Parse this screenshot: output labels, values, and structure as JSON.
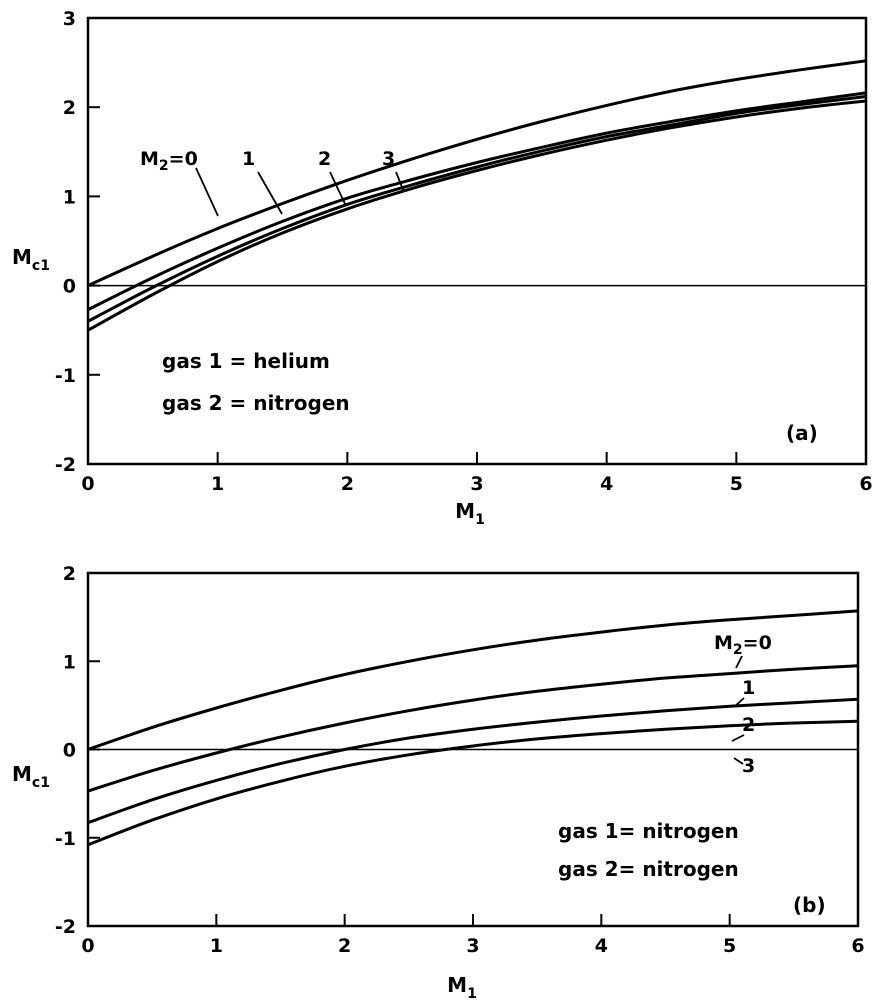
{
  "chart_data": [
    {
      "type": "line",
      "panel_label": "(a)",
      "xlabel": "M",
      "xlabel_sub": "1",
      "ylabel": "M",
      "ylabel_sub": "c1",
      "xlim": [
        0,
        6
      ],
      "ylim": [
        -2,
        3
      ],
      "xticks": [
        "0",
        "1",
        "2",
        "3",
        "4",
        "5",
        "6"
      ],
      "yticks": [
        "-2",
        "-1",
        "0",
        "1",
        "2",
        "3"
      ],
      "zero_line": true,
      "grid": false,
      "annotations": [
        "gas 1 = helium",
        "gas 2 = nitrogen"
      ],
      "x": [
        0,
        0.5,
        1,
        1.5,
        2,
        2.5,
        3,
        3.5,
        4,
        4.5,
        5,
        5.5,
        6
      ],
      "series": [
        {
          "name": "M2=0",
          "values": [
            0.0,
            0.33,
            0.64,
            0.92,
            1.18,
            1.42,
            1.64,
            1.84,
            2.02,
            2.18,
            2.31,
            2.42,
            2.52
          ]
        },
        {
          "name": "1",
          "values": [
            -0.27,
            0.09,
            0.42,
            0.72,
            0.98,
            1.19,
            1.38,
            1.55,
            1.71,
            1.84,
            1.96,
            2.06,
            2.16
          ]
        },
        {
          "name": "2",
          "values": [
            -0.4,
            -0.02,
            0.33,
            0.64,
            0.91,
            1.13,
            1.33,
            1.51,
            1.67,
            1.8,
            1.93,
            2.03,
            2.12
          ]
        },
        {
          "name": "3",
          "values": [
            -0.5,
            -0.1,
            0.27,
            0.59,
            0.86,
            1.09,
            1.29,
            1.47,
            1.63,
            1.77,
            1.89,
            1.99,
            2.07
          ]
        }
      ]
    },
    {
      "type": "line",
      "panel_label": "(b)",
      "xlabel": "M",
      "xlabel_sub": "1",
      "ylabel": "M",
      "ylabel_sub": "c1",
      "xlim": [
        0,
        6
      ],
      "ylim": [
        -2,
        2
      ],
      "xticks": [
        "0",
        "1",
        "2",
        "3",
        "4",
        "5",
        "6"
      ],
      "yticks": [
        "-2",
        "-1",
        "0",
        "1",
        "2"
      ],
      "zero_line": true,
      "grid": false,
      "annotations": [
        "gas 1= nitrogen",
        "gas 2= nitrogen"
      ],
      "x": [
        0,
        0.5,
        1,
        1.5,
        2,
        2.5,
        3,
        3.5,
        4,
        4.5,
        5,
        5.5,
        6
      ],
      "series": [
        {
          "name": "M2=0",
          "values": [
            0.0,
            0.25,
            0.47,
            0.67,
            0.85,
            1.0,
            1.13,
            1.24,
            1.33,
            1.41,
            1.47,
            1.52,
            1.57
          ]
        },
        {
          "name": "1",
          "values": [
            -0.47,
            -0.24,
            -0.04,
            0.14,
            0.3,
            0.44,
            0.56,
            0.66,
            0.74,
            0.81,
            0.86,
            0.91,
            0.95
          ]
        },
        {
          "name": "2",
          "values": [
            -0.83,
            -0.57,
            -0.35,
            -0.16,
            0.0,
            0.13,
            0.23,
            0.31,
            0.38,
            0.44,
            0.49,
            0.53,
            0.57
          ]
        },
        {
          "name": "3",
          "values": [
            -1.08,
            -0.8,
            -0.56,
            -0.36,
            -0.19,
            -0.06,
            0.04,
            0.12,
            0.18,
            0.23,
            0.27,
            0.3,
            0.32
          ]
        }
      ]
    }
  ]
}
